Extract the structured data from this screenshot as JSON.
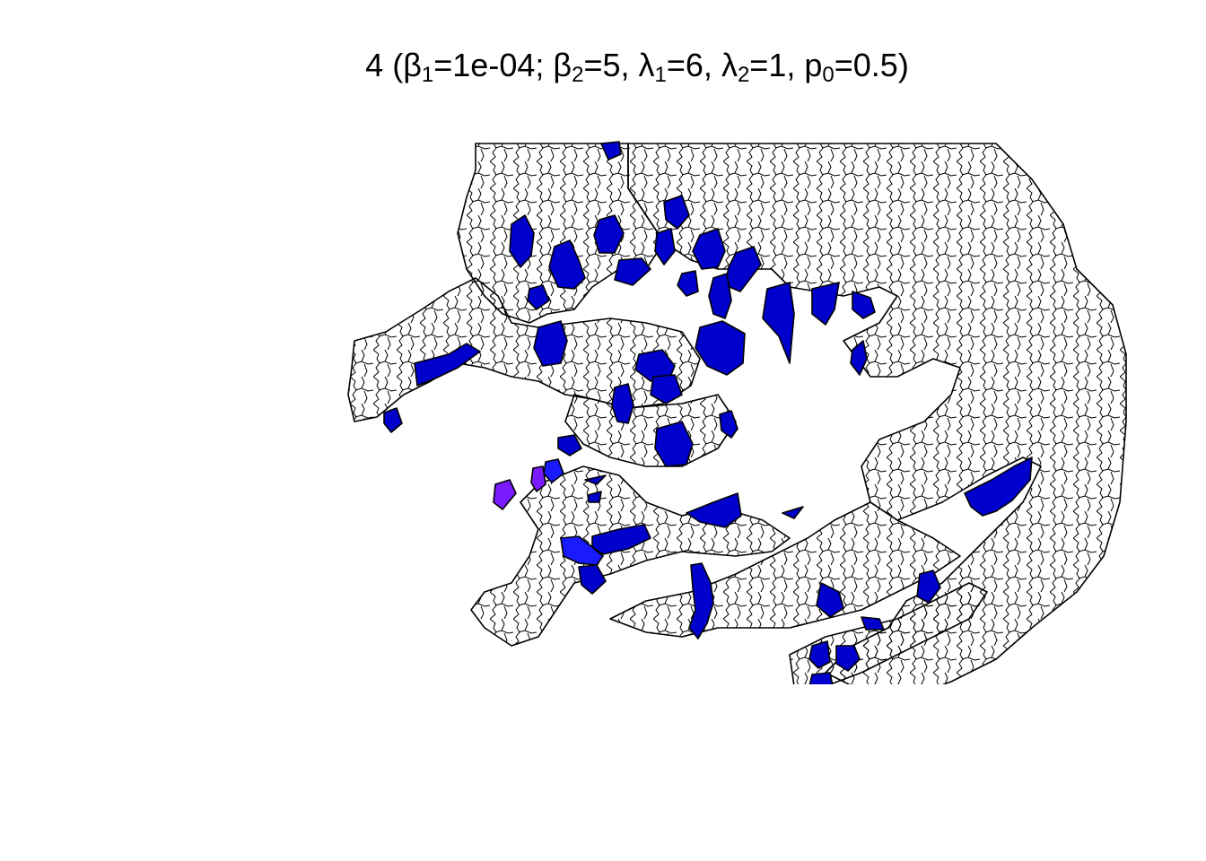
{
  "title": {
    "prefix": "4 (",
    "beta1_symbol": "β",
    "beta1_sub": "1",
    "beta1_value": "=1e-04; ",
    "beta2_symbol": "β",
    "beta2_sub": "2",
    "beta2_value": "=5, ",
    "lambda1_symbol": "λ",
    "lambda1_sub": "1",
    "lambda1_value": "=6, ",
    "lambda2_symbol": "λ",
    "lambda2_sub": "2",
    "lambda2_value": "=1, ",
    "p0_symbol": "p",
    "p0_sub": "0",
    "p0_value": "=0.5)"
  },
  "colors": {
    "background_region": "#ffffff",
    "border": "#000000",
    "fill_dark_blue": "#0000cc",
    "fill_blue": "#1a1aff",
    "fill_violet": "#7a1aff"
  }
}
